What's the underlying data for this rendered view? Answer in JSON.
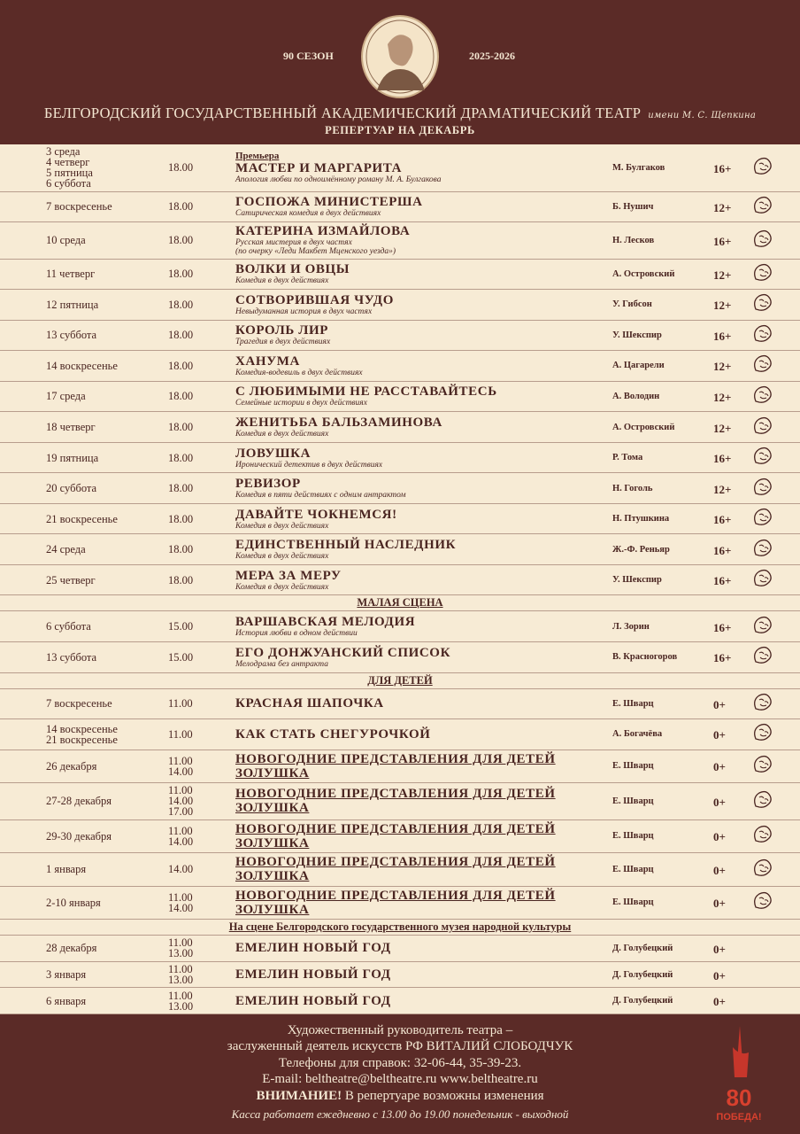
{
  "header": {
    "season": "90 СЕЗОН",
    "years": "2025-2026",
    "theatre": "БЕЛГОРОДСКИЙ ГОСУДАРСТВЕННЫЙ АКАДЕМИЧЕСКИЙ ДРАМАТИЧЕСКИЙ ТЕАТР",
    "named": "имени М. С. Щепкина",
    "subtitle": "РЕПЕРТУАР НА ДЕКАБРЬ"
  },
  "sections": [
    {
      "rows": [
        {
          "dates": [
            "3 среда",
            "4 четверг",
            "5 пятница",
            "6 суббота"
          ],
          "times": [
            "18.00"
          ],
          "label": "Премьера",
          "title": [
            "МАСТЕР И МАРГАРИТА"
          ],
          "desc": [
            "Апология любви по одноимённому роману М. А. Булгакова"
          ],
          "author": "М. Булгаков",
          "age": "16+"
        },
        {
          "dates": [
            "7 воскресенье"
          ],
          "times": [
            "18.00"
          ],
          "title": [
            "ГОСПОЖА МИНИСТЕРША"
          ],
          "desc": [
            "Сатирическая комедия в двух действиях"
          ],
          "author": "Б. Нушич",
          "age": "12+"
        },
        {
          "dates": [
            "10 среда"
          ],
          "times": [
            "18.00"
          ],
          "title": [
            "КАТЕРИНА ИЗМАЙЛОВА"
          ],
          "desc": [
            "Русская мистерия в двух частях",
            "(по очерку «Леди Макбет Мценского уезда»)"
          ],
          "author": "Н. Лесков",
          "age": "16+"
        },
        {
          "dates": [
            "11 четверг"
          ],
          "times": [
            "18.00"
          ],
          "title": [
            "ВОЛКИ И ОВЦЫ"
          ],
          "desc": [
            "Комедия в двух действиях"
          ],
          "author": "А. Островский",
          "age": "12+"
        },
        {
          "dates": [
            "12 пятница"
          ],
          "times": [
            "18.00"
          ],
          "title": [
            "СОТВОРИВШАЯ ЧУДО"
          ],
          "desc": [
            "Невыдуманная история в двух частях"
          ],
          "author": "У. Гибсон",
          "age": "12+"
        },
        {
          "dates": [
            "13 суббота"
          ],
          "times": [
            "18.00"
          ],
          "title": [
            "КОРОЛЬ ЛИР"
          ],
          "desc": [
            "Трагедия в двух действиях"
          ],
          "author": "У. Шекспир",
          "age": "16+"
        },
        {
          "dates": [
            "14 воскресенье"
          ],
          "times": [
            "18.00"
          ],
          "title": [
            "ХАНУМА"
          ],
          "desc": [
            "Комедия-водевиль в двух действиях"
          ],
          "author": "А. Цагарели",
          "age": "12+"
        },
        {
          "dates": [
            "17 среда"
          ],
          "times": [
            "18.00"
          ],
          "title": [
            "С ЛЮБИМЫМИ НЕ РАССТАВАЙТЕСЬ"
          ],
          "desc": [
            "Семейные истории в двух действиях"
          ],
          "author": "А. Володин",
          "age": "12+"
        },
        {
          "dates": [
            "18 четверг"
          ],
          "times": [
            "18.00"
          ],
          "title": [
            "ЖЕНИТЬБА БАЛЬЗАМИНОВА"
          ],
          "desc": [
            "Комедия в двух действиях"
          ],
          "author": "А. Островский",
          "age": "12+"
        },
        {
          "dates": [
            "19 пятница"
          ],
          "times": [
            "18.00"
          ],
          "title": [
            "ЛОВУШКА"
          ],
          "desc": [
            "Иронический детектив в двух действиях"
          ],
          "author": "Р. Тома",
          "age": "16+"
        },
        {
          "dates": [
            "20 суббота"
          ],
          "times": [
            "18.00"
          ],
          "title": [
            "РЕВИЗОР"
          ],
          "desc": [
            "Комедия в пяти действиях  с одним антрактом"
          ],
          "author": "Н. Гоголь",
          "age": "12+"
        },
        {
          "dates": [
            "21 воскресенье"
          ],
          "times": [
            "18.00"
          ],
          "title": [
            "ДАВАЙТЕ ЧОКНЕМСЯ!"
          ],
          "desc": [
            "Комедия в двух действиях"
          ],
          "author": "Н. Птушкина",
          "age": "16+"
        },
        {
          "dates": [
            "24 среда"
          ],
          "times": [
            "18.00"
          ],
          "title": [
            "ЕДИНСТВЕННЫЙ НАСЛЕДНИК"
          ],
          "desc": [
            "Комедия в двух действиях"
          ],
          "author": "Ж.-Ф. Реньяр",
          "age": "16+"
        },
        {
          "dates": [
            "25 четверг"
          ],
          "times": [
            "18.00"
          ],
          "title": [
            "МЕРА ЗА МЕРУ"
          ],
          "desc": [
            "Комедия в двух действиях"
          ],
          "author": "У. Шекспир",
          "age": "16+"
        }
      ]
    },
    {
      "heading": "МАЛАЯ СЦЕНА",
      "rows": [
        {
          "dates": [
            "6 суббота"
          ],
          "times": [
            "15.00"
          ],
          "title": [
            "ВАРШАВСКАЯ МЕЛОДИЯ"
          ],
          "desc": [
            "История любви в одном действии"
          ],
          "author": "Л. Зорин",
          "age": "16+"
        },
        {
          "dates": [
            "13 суббота"
          ],
          "times": [
            "15.00"
          ],
          "title": [
            "ЕГО ДОНЖУАНСКИЙ СПИСОК"
          ],
          "desc": [
            "Мелодрама без антракта"
          ],
          "author": "В. Красногоров",
          "age": "16+"
        }
      ]
    },
    {
      "heading": "ДЛЯ ДЕТЕЙ",
      "rows": [
        {
          "dates": [
            "7 воскресенье"
          ],
          "times": [
            "11.00"
          ],
          "title": [
            "КРАСНАЯ ШАПОЧКА"
          ],
          "author": "Е. Шварц",
          "age": "0+"
        },
        {
          "dates": [
            "14 воскресенье",
            "21 воскресенье"
          ],
          "times": [
            "11.00"
          ],
          "title": [
            "КАК СТАТЬ СНЕГУРОЧКОЙ"
          ],
          "author": "А. Богачёва",
          "age": "0+"
        },
        {
          "dates": [
            "26 декабря"
          ],
          "times": [
            "11.00",
            "14.00"
          ],
          "title": [
            "НОВОГОДНИЕ ПРЕДСТАВЛЕНИЯ ДЛЯ ДЕТЕЙ",
            "ЗОЛУШКА"
          ],
          "author": "Е. Шварц",
          "age": "0+"
        },
        {
          "dates": [
            "27-28 декабря"
          ],
          "times": [
            "11.00",
            "14.00",
            "17.00"
          ],
          "title": [
            "НОВОГОДНИЕ ПРЕДСТАВЛЕНИЯ ДЛЯ ДЕТЕЙ",
            "ЗОЛУШКА"
          ],
          "author": "Е. Шварц",
          "age": "0+"
        },
        {
          "dates": [
            "29-30 декабря"
          ],
          "times": [
            "11.00",
            "14.00"
          ],
          "title": [
            "НОВОГОДНИЕ ПРЕДСТАВЛЕНИЯ ДЛЯ ДЕТЕЙ",
            "ЗОЛУШКА"
          ],
          "author": "Е. Шварц",
          "age": "0+"
        },
        {
          "dates": [
            "1 января"
          ],
          "times": [
            "14.00"
          ],
          "title": [
            "НОВОГОДНИЕ ПРЕДСТАВЛЕНИЯ ДЛЯ ДЕТЕЙ",
            "ЗОЛУШКА"
          ],
          "author": "Е. Шварц",
          "age": "0+"
        },
        {
          "dates": [
            "2-10 января"
          ],
          "times": [
            "11.00",
            "14.00"
          ],
          "title": [
            "НОВОГОДНИЕ ПРЕДСТАВЛЕНИЯ ДЛЯ ДЕТЕЙ",
            "ЗОЛУШКА"
          ],
          "author": "Е. Шварц",
          "age": "0+"
        }
      ]
    },
    {
      "heading": "На сцене Белгородского государственного музея народной культуры",
      "rows": [
        {
          "dates": [
            "28 декабря"
          ],
          "times": [
            "11.00",
            "13.00"
          ],
          "title": [
            "ЕМЕЛИН НОВЫЙ ГОД"
          ],
          "author": "Д. Голубецкий",
          "age": "0+"
        },
        {
          "dates": [
            "3 января"
          ],
          "times": [
            "11.00",
            "13.00"
          ],
          "title": [
            "ЕМЕЛИН НОВЫЙ ГОД"
          ],
          "author": "Д. Голубецкий",
          "age": "0+"
        },
        {
          "dates": [
            "6 января"
          ],
          "times": [
            "11.00",
            "13.00"
          ],
          "title": [
            "ЕМЕЛИН НОВЫЙ ГОД"
          ],
          "author": "Д. Голубецкий",
          "age": "0+"
        }
      ]
    }
  ],
  "footer": {
    "director_line1": "Художественный руководитель театра –",
    "director_line2": "заслуженный деятель искусств РФ ВИТАЛИЙ СЛОБОДЧУК",
    "phones": "Телефоны для справок: 32-06-44, 35-39-23.",
    "contacts": "E-mail: beltheatre@beltheatre.ru www.beltheatre.ru",
    "attention_label": "ВНИМАНИЕ!",
    "attention_text": "В репертуаре возможны изменения",
    "box_office": "Касса работает ежедневно с 13.00 до 19.00 понедельник - выходной",
    "logo_number": "80",
    "logo_text": "ПОБЕДА!"
  }
}
